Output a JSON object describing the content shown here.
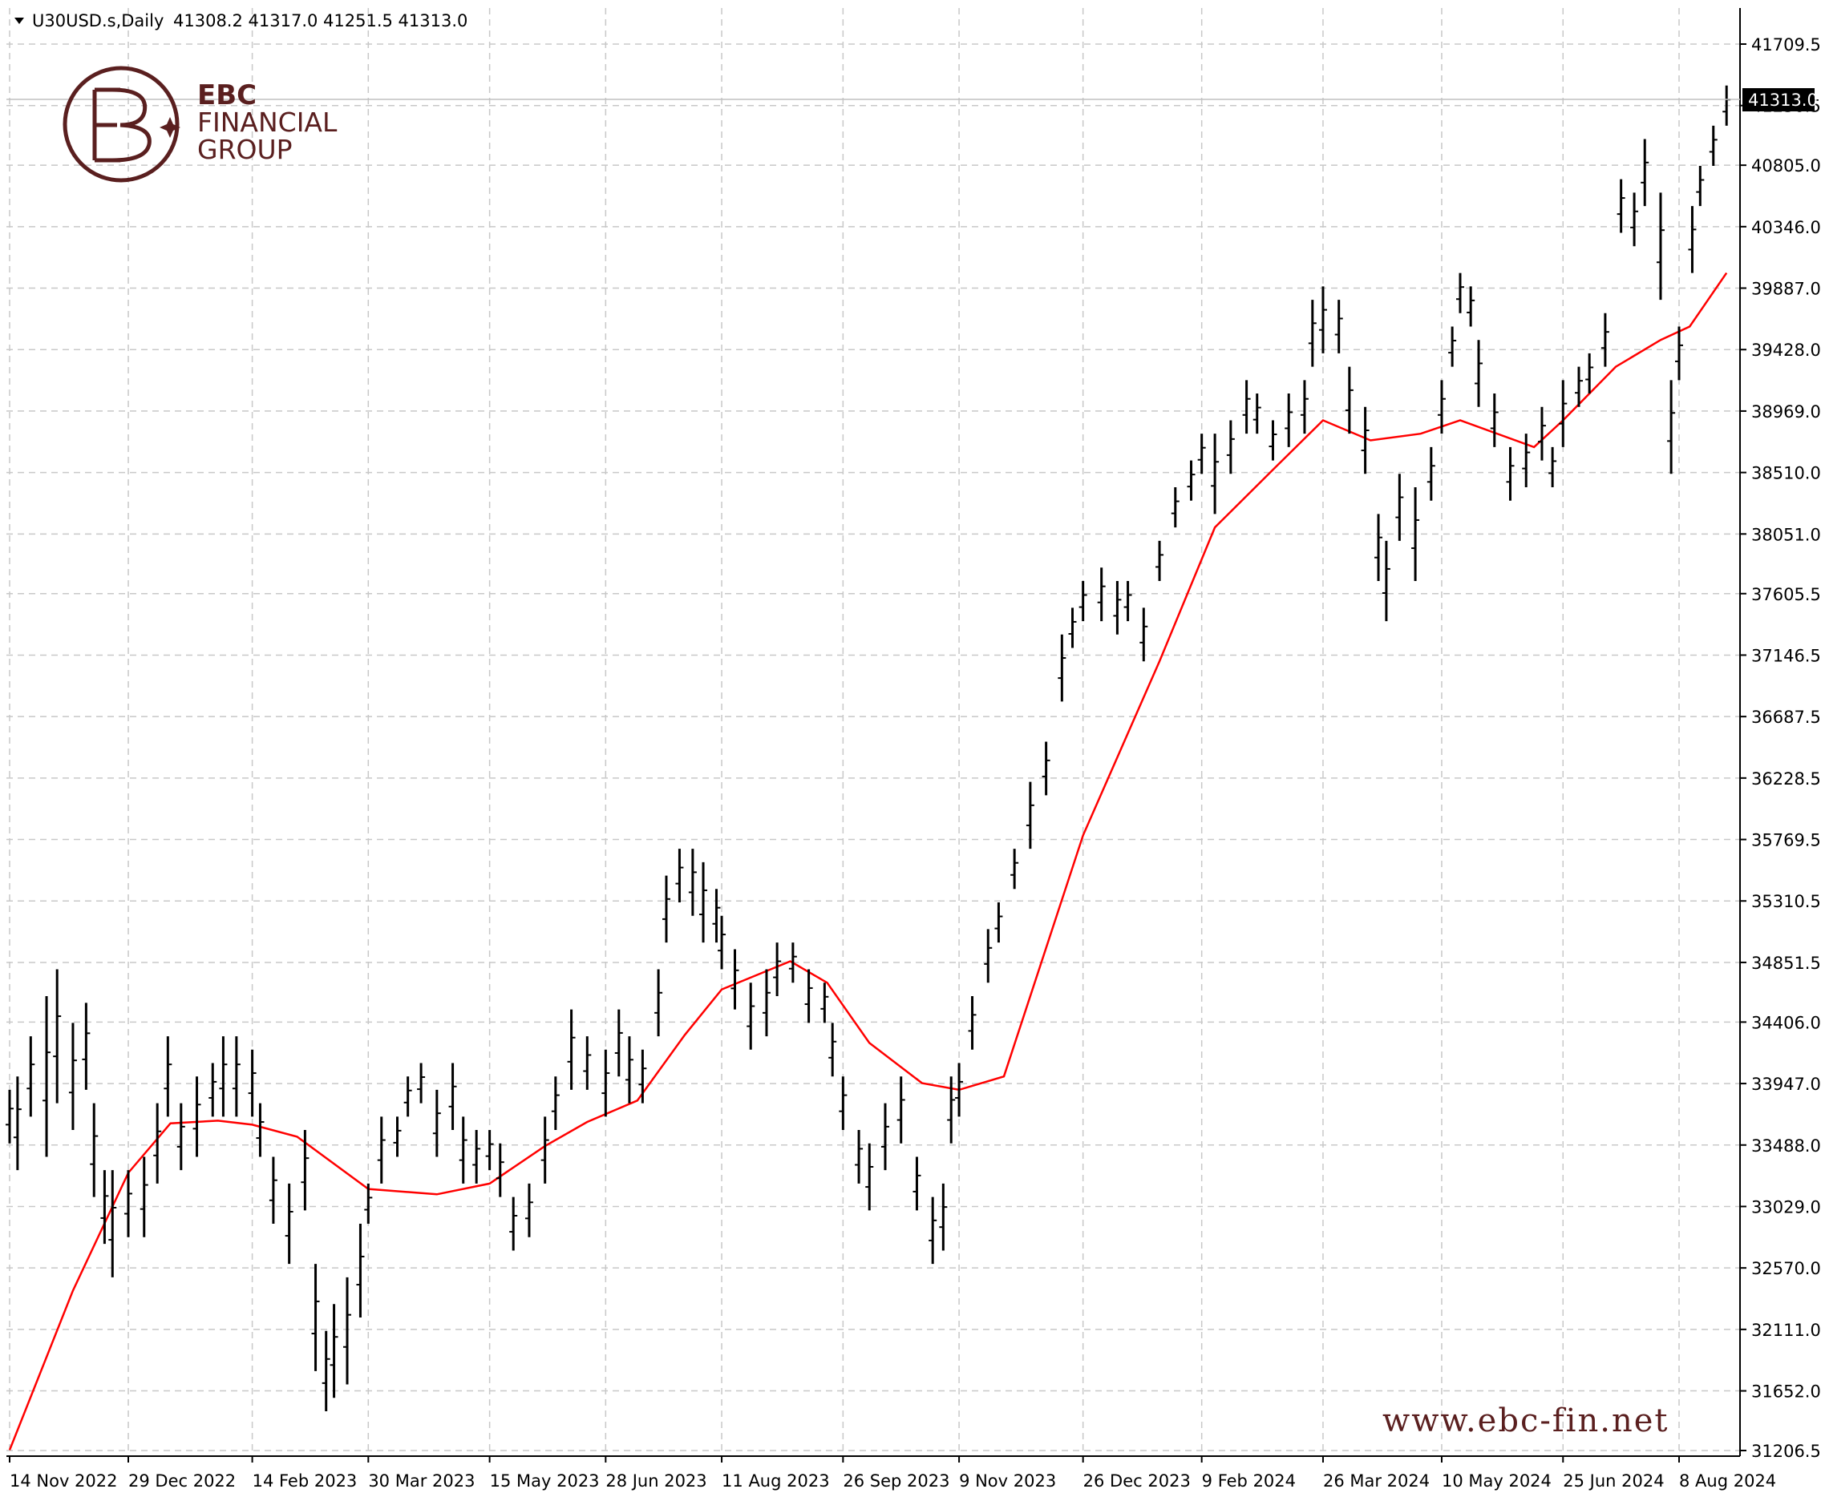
{
  "header": {
    "symbol": "U30USD.s,Daily",
    "ohlc": "41308.2 41317.0 41251.5 41313.0",
    "dropdown_icon": "triangle-down-icon"
  },
  "logo": {
    "line1": "EBC",
    "line2": "FINANCIAL",
    "line3": "GROUP",
    "icon": "ebc-logo-icon"
  },
  "watermark": "www.ebc-fin.net",
  "current_price": "41313.0",
  "chart_data": {
    "type": "bar",
    "subtype": "ohlc-bars-with-moving-average",
    "title": "",
    "grid": true,
    "grid_style": "dashed",
    "y_ticks": [
      "41709.5",
      "41250.5",
      "40805.0",
      "40346.0",
      "39887.0",
      "39428.0",
      "38969.0",
      "38510.0",
      "38051.0",
      "37605.5",
      "37146.5",
      "36687.5",
      "36228.5",
      "35769.5",
      "35310.5",
      "34851.5",
      "34406.0",
      "33947.0",
      "33488.0",
      "33029.0",
      "32570.0",
      "32111.0",
      "31652.0",
      "31206.5"
    ],
    "x_ticks": [
      "14 Nov 2022",
      "29 Dec 2022",
      "14 Feb 2023",
      "30 Mar 2023",
      "15 May 2023",
      "28 Jun 2023",
      "11 Aug 2023",
      "26 Sep 2023",
      "9 Nov 2023",
      "26 Dec 2023",
      "9 Feb 2024",
      "26 Mar 2024",
      "10 May 2024",
      "25 Jun 2024",
      "8 Aug 2024"
    ],
    "ylim": [
      31206.5,
      41709.5
    ],
    "series": [
      {
        "kind": "price",
        "color": "#000000",
        "points": [
          [
            "14 Nov 2022",
            33500,
            33900
          ],
          [
            "17 Nov 2022",
            33300,
            34000
          ],
          [
            "22 Nov 2022",
            33700,
            34300
          ],
          [
            "28 Nov 2022",
            33400,
            34600
          ],
          [
            "2 Dec 2022",
            33800,
            34800
          ],
          [
            "8 Dec 2022",
            33600,
            34400
          ],
          [
            "13 Dec 2022",
            33900,
            34550
          ],
          [
            "16 Dec 2022",
            33100,
            33800
          ],
          [
            "20 Dec 2022",
            32750,
            33300
          ],
          [
            "23 Dec 2022",
            32500,
            33300
          ],
          [
            "29 Dec 2022",
            32800,
            33300
          ],
          [
            "4 Jan 2023",
            32800,
            33400
          ],
          [
            "9 Jan 2023",
            33200,
            33800
          ],
          [
            "13 Jan 2023",
            33700,
            34300
          ],
          [
            "18 Jan 2023",
            33300,
            33800
          ],
          [
            "24 Jan 2023",
            33400,
            34000
          ],
          [
            "30 Jan 2023",
            33700,
            34100
          ],
          [
            "3 Feb 2023",
            33700,
            34300
          ],
          [
            "8 Feb 2023",
            33700,
            34300
          ],
          [
            "14 Feb 2023",
            33700,
            34200
          ],
          [
            "17 Feb 2023",
            33400,
            33800
          ],
          [
            "22 Feb 2023",
            32900,
            33400
          ],
          [
            "28 Feb 2023",
            32600,
            33200
          ],
          [
            "6 Mar 2023",
            33000,
            33600
          ],
          [
            "10 Mar 2023",
            31800,
            32600
          ],
          [
            "14 Mar 2023",
            31500,
            32100
          ],
          [
            "17 Mar 2023",
            31600,
            32300
          ],
          [
            "22 Mar 2023",
            31700,
            32500
          ],
          [
            "27 Mar 2023",
            32200,
            32900
          ],
          [
            "30 Mar 2023",
            32900,
            33200
          ],
          [
            "4 Apr 2023",
            33200,
            33700
          ],
          [
            "10 Apr 2023",
            33400,
            33700
          ],
          [
            "14 Apr 2023",
            33700,
            34000
          ],
          [
            "19 Apr 2023",
            33800,
            34100
          ],
          [
            "25 Apr 2023",
            33400,
            33900
          ],
          [
            "1 May 2023",
            33600,
            34100
          ],
          [
            "5 May 2023",
            33200,
            33700
          ],
          [
            "10 May 2023",
            33200,
            33600
          ],
          [
            "15 May 2023",
            33300,
            33600
          ],
          [
            "19 May 2023",
            33100,
            33500
          ],
          [
            "24 May 2023",
            32700,
            33100
          ],
          [
            "30 May 2023",
            32800,
            33200
          ],
          [
            "5 Jun 2023",
            33200,
            33700
          ],
          [
            "9 Jun 2023",
            33600,
            34000
          ],
          [
            "15 Jun 2023",
            33900,
            34500
          ],
          [
            "21 Jun 2023",
            33900,
            34300
          ],
          [
            "28 Jun 2023",
            33700,
            34200
          ],
          [
            "3 Jul 2023",
            34000,
            34500
          ],
          [
            "7 Jul 2023",
            33800,
            34300
          ],
          [
            "12 Jul 2023",
            33800,
            34200
          ],
          [
            "18 Jul 2023",
            34300,
            34800
          ],
          [
            "21 Jul 2023",
            35000,
            35500
          ],
          [
            "26 Jul 2023",
            35300,
            35700
          ],
          [
            "31 Jul 2023",
            35200,
            35700
          ],
          [
            "4 Aug 2023",
            35000,
            35600
          ],
          [
            "9 Aug 2023",
            35000,
            35400
          ],
          [
            "11 Aug 2023",
            34800,
            35200
          ],
          [
            "16 Aug 2023",
            34500,
            34950
          ],
          [
            "22 Aug 2023",
            34200,
            34700
          ],
          [
            "28 Aug 2023",
            34300,
            34800
          ],
          [
            "1 Sep 2023",
            34600,
            35000
          ],
          [
            "7 Sep 2023",
            34700,
            35000
          ],
          [
            "13 Sep 2023",
            34400,
            34800
          ],
          [
            "19 Sep 2023",
            34400,
            34700
          ],
          [
            "22 Sep 2023",
            34000,
            34400
          ],
          [
            "26 Sep 2023",
            33600,
            34000
          ],
          [
            "2 Oct 2023",
            33200,
            33600
          ],
          [
            "6 Oct 2023",
            33000,
            33500
          ],
          [
            "12 Oct 2023",
            33300,
            33800
          ],
          [
            "18 Oct 2023",
            33500,
            34000
          ],
          [
            "24 Oct 2023",
            33000,
            33400
          ],
          [
            "30 Oct 2023",
            32600,
            33100
          ],
          [
            "3 Nov 2023",
            32700,
            33200
          ],
          [
            "6 Nov 2023",
            33500,
            34000
          ],
          [
            "9 Nov 2023",
            33700,
            34100
          ],
          [
            "14 Nov 2023",
            34200,
            34600
          ],
          [
            "20 Nov 2023",
            34700,
            35100
          ],
          [
            "24 Nov 2023",
            35000,
            35300
          ],
          [
            "30 Nov 2023",
            35400,
            35700
          ],
          [
            "6 Dec 2023",
            35700,
            36200
          ],
          [
            "12 Dec 2023",
            36100,
            36500
          ],
          [
            "18 Dec 2023",
            36800,
            37300
          ],
          [
            "22 Dec 2023",
            37200,
            37500
          ],
          [
            "26 Dec 2023",
            37400,
            37700
          ],
          [
            "2 Jan 2024",
            37400,
            37800
          ],
          [
            "8 Jan 2024",
            37300,
            37700
          ],
          [
            "12 Jan 2024",
            37400,
            37700
          ],
          [
            "18 Jan 2024",
            37100,
            37500
          ],
          [
            "24 Jan 2024",
            37700,
            38000
          ],
          [
            "30 Jan 2024",
            38100,
            38400
          ],
          [
            "5 Feb 2024",
            38300,
            38600
          ],
          [
            "9 Feb 2024",
            38500,
            38800
          ],
          [
            "14 Feb 2024",
            38200,
            38800
          ],
          [
            "20 Feb 2024",
            38500,
            38900
          ],
          [
            "26 Feb 2024",
            38800,
            39200
          ],
          [
            "1 Mar 2024",
            38800,
            39100
          ],
          [
            "7 Mar 2024",
            38600,
            38900
          ],
          [
            "13 Mar 2024",
            38700,
            39100
          ],
          [
            "19 Mar 2024",
            38800,
            39200
          ],
          [
            "22 Mar 2024",
            39300,
            39800
          ],
          [
            "26 Mar 2024",
            39400,
            39900
          ],
          [
            "1 Apr 2024",
            39400,
            39800
          ],
          [
            "5 Apr 2024",
            38800,
            39300
          ],
          [
            "11 Apr 2024",
            38500,
            39000
          ],
          [
            "16 Apr 2024",
            37700,
            38200
          ],
          [
            "19 Apr 2024",
            37400,
            38000
          ],
          [
            "24 Apr 2024",
            38000,
            38500
          ],
          [
            "30 Apr 2024",
            37700,
            38400
          ],
          [
            "6 May 2024",
            38300,
            38700
          ],
          [
            "10 May 2024",
            38800,
            39200
          ],
          [
            "14 May 2024",
            39300,
            39600
          ],
          [
            "17 May 2024",
            39700,
            40000
          ],
          [
            "21 May 2024",
            39600,
            39900
          ],
          [
            "24 May 2024",
            39000,
            39500
          ],
          [
            "30 May 2024",
            38700,
            39100
          ],
          [
            "5 Jun 2024",
            38300,
            38700
          ],
          [
            "11 Jun 2024",
            38400,
            38800
          ],
          [
            "17 Jun 2024",
            38600,
            39000
          ],
          [
            "21 Jun 2024",
            38400,
            38700
          ],
          [
            "25 Jun 2024",
            38700,
            39200
          ],
          [
            "1 Jul 2024",
            39000,
            39300
          ],
          [
            "5 Jul 2024",
            39100,
            39400
          ],
          [
            "11 Jul 2024",
            39300,
            39700
          ],
          [
            "17 Jul 2024",
            40300,
            40700
          ],
          [
            "22 Jul 2024",
            40200,
            40600
          ],
          [
            "26 Jul 2024",
            40500,
            41000
          ],
          [
            "1 Aug 2024",
            39800,
            40600
          ],
          [
            "5 Aug 2024",
            38500,
            39200
          ],
          [
            "8 Aug 2024",
            39200,
            39600
          ],
          [
            "13 Aug 2024",
            40000,
            40500
          ],
          [
            "16 Aug 2024",
            40500,
            40800
          ],
          [
            "21 Aug 2024",
            40800,
            41100
          ],
          [
            "26 Aug 2024",
            41100,
            41400
          ]
        ]
      },
      {
        "kind": "moving-average",
        "color": "#ff0000",
        "points": [
          [
            "14 Nov 2022",
            31210
          ],
          [
            "8 Dec 2022",
            32400
          ],
          [
            "29 Dec 2022",
            33280
          ],
          [
            "14 Jan 2023",
            33650
          ],
          [
            "1 Feb 2023",
            33670
          ],
          [
            "14 Feb 2023",
            33640
          ],
          [
            "3 Mar 2023",
            33550
          ],
          [
            "30 Mar 2023",
            33160
          ],
          [
            "25 Apr 2023",
            33120
          ],
          [
            "15 May 2023",
            33200
          ],
          [
            "5 Jun 2023",
            33480
          ],
          [
            "21 Jun 2023",
            33660
          ],
          [
            "10 Jul 2023",
            33820
          ],
          [
            "28 Jul 2023",
            34310
          ],
          [
            "11 Aug 2023",
            34650
          ],
          [
            "6 Sep 2023",
            34860
          ],
          [
            "20 Sep 2023",
            34700
          ],
          [
            "6 Oct 2023",
            34250
          ],
          [
            "26 Oct 2023",
            33950
          ],
          [
            "9 Nov 2023",
            33900
          ],
          [
            "26 Nov 2023",
            34000
          ],
          [
            "26 Dec 2023",
            35800
          ],
          [
            "24 Jan 2024",
            37100
          ],
          [
            "14 Feb 2024",
            38100
          ],
          [
            "8 Mar 2024",
            38550
          ],
          [
            "26 Mar 2024",
            38900
          ],
          [
            "13 Apr 2024",
            38750
          ],
          [
            "2 May 2024",
            38800
          ],
          [
            "17 May 2024",
            38900
          ],
          [
            "14 Jun 2024",
            38700
          ],
          [
            "25 Jun 2024",
            38900
          ],
          [
            "15 Jul 2024",
            39300
          ],
          [
            "1 Aug 2024",
            39500
          ],
          [
            "12 Aug 2024",
            39600
          ],
          [
            "26 Aug 2024",
            40000
          ]
        ]
      }
    ]
  }
}
